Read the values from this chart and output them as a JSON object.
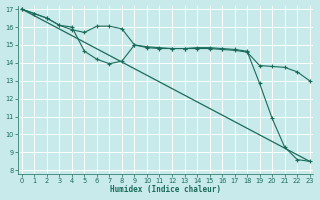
{
  "bg_color": "#c8eaea",
  "grid_color": "#ffffff",
  "line_color": "#1a6b5a",
  "xlabel": "Humidex (Indice chaleur)",
  "ylim_min": 8,
  "ylim_max": 17,
  "xlim_min": 0,
  "xlim_max": 23,
  "yticks": [
    8,
    9,
    10,
    11,
    12,
    13,
    14,
    15,
    16,
    17
  ],
  "xticks": [
    0,
    1,
    2,
    3,
    4,
    5,
    6,
    7,
    8,
    9,
    10,
    11,
    12,
    13,
    14,
    15,
    16,
    17,
    18,
    19,
    20,
    21,
    22,
    23
  ],
  "line_diag": {
    "x": [
      0,
      23
    ],
    "y": [
      17.0,
      8.5
    ]
  },
  "line_A": {
    "x": [
      0,
      1,
      2,
      3,
      4,
      5,
      6,
      7,
      8,
      9,
      10,
      11,
      12,
      13,
      14,
      15,
      16,
      17,
      18,
      19,
      20,
      21,
      22,
      23
    ],
    "y": [
      17,
      16.75,
      16.5,
      16.1,
      16.0,
      14.65,
      14.2,
      13.95,
      14.1,
      15.0,
      14.9,
      14.85,
      14.8,
      14.8,
      14.85,
      14.85,
      14.8,
      14.75,
      14.65,
      12.85,
      10.9,
      9.3,
      8.6,
      8.5
    ]
  },
  "line_B": {
    "x": [
      0,
      1,
      2,
      3,
      4,
      5,
      6,
      7,
      8,
      9,
      10,
      11,
      12,
      13,
      14,
      15,
      16,
      17,
      18,
      19,
      20,
      21,
      22,
      23
    ],
    "y": [
      17,
      16.75,
      16.5,
      16.1,
      15.85,
      15.7,
      16.05,
      16.05,
      15.9,
      15.0,
      14.85,
      14.8,
      14.8,
      14.8,
      14.8,
      14.8,
      14.75,
      14.7,
      14.6,
      13.85,
      13.8,
      13.75,
      13.5,
      13.0
    ]
  }
}
